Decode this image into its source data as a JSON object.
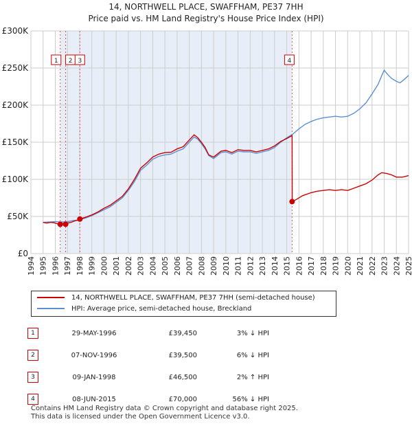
{
  "title": {
    "line1": "14, NORTHWELL PLACE, SWAFFHAM, PE37 7HH",
    "line2": "Price paid vs. HM Land Registry's House Price Index (HPI)"
  },
  "colors": {
    "property": "#cc0000",
    "hpi": "#5b8fd0",
    "shade": "#e8eef8",
    "grid": "#cccccc",
    "marker_line": "#e05050"
  },
  "chart_data": {
    "type": "line",
    "title": "Price paid vs. HM Land Registry's House Price Index (HPI)",
    "xlabel": "",
    "ylabel": "",
    "xlim": [
      1994,
      2025
    ],
    "ylim": [
      0,
      300000
    ],
    "x_ticks": [
      "1994",
      "1995",
      "1996",
      "1997",
      "1998",
      "1999",
      "2000",
      "2001",
      "2002",
      "2003",
      "2004",
      "2005",
      "2006",
      "2007",
      "2008",
      "2009",
      "2010",
      "2011",
      "2012",
      "2013",
      "2014",
      "2015",
      "2016",
      "2017",
      "2018",
      "2019",
      "2020",
      "2021",
      "2022",
      "2023",
      "2024",
      "2025"
    ],
    "y_ticks": [
      {
        "value": 0,
        "label": "£0"
      },
      {
        "value": 50000,
        "label": "£50K"
      },
      {
        "value": 100000,
        "label": "£100K"
      },
      {
        "value": 150000,
        "label": "£150K"
      },
      {
        "value": 200000,
        "label": "£200K"
      },
      {
        "value": 250000,
        "label": "£250K"
      },
      {
        "value": 300000,
        "label": "£300K"
      }
    ],
    "grid": true,
    "series": [
      {
        "name": "14, NORTHWELL PLACE, SWAFFHAM, PE37 7HH (semi-detached house)",
        "color": "#cc0000",
        "x": [
          1995.0,
          1995.3,
          1995.6,
          1995.9,
          1996.2,
          1996.41,
          1996.6,
          1996.85,
          1997.0,
          1997.3,
          1997.6,
          1997.9,
          1998.02,
          1998.5,
          1999.0,
          1999.5,
          2000.0,
          2000.5,
          2001.0,
          2001.5,
          2002.0,
          2002.5,
          2003.0,
          2003.5,
          2004.0,
          2004.5,
          2005.0,
          2005.5,
          2006.0,
          2006.5,
          2007.0,
          2007.4,
          2007.7,
          2008.0,
          2008.3,
          2008.6,
          2009.0,
          2009.3,
          2009.6,
          2010.0,
          2010.5,
          2011.0,
          2011.5,
          2012.0,
          2012.5,
          2013.0,
          2013.5,
          2014.0,
          2014.5,
          2015.0,
          2015.44,
          2015.45,
          2015.8,
          2016.3,
          2017.0,
          2017.5,
          2018.0,
          2018.5,
          2019.0,
          2019.5,
          2020.0,
          2020.5,
          2021.0,
          2021.5,
          2022.0,
          2022.5,
          2022.8,
          2023.2,
          2023.6,
          2024.0,
          2024.5,
          2025.0
        ],
        "values": [
          42000,
          41000,
          42000,
          41500,
          40000,
          39450,
          40000,
          39500,
          41000,
          42000,
          44000,
          45000,
          46500,
          49000,
          52000,
          56000,
          61000,
          65000,
          71000,
          77000,
          87000,
          100000,
          115000,
          122000,
          130000,
          134000,
          136000,
          136500,
          141000,
          144000,
          153000,
          160000,
          156000,
          150000,
          143000,
          133000,
          130000,
          134000,
          138000,
          139000,
          136000,
          140000,
          139000,
          139000,
          137000,
          139000,
          141000,
          145000,
          151000,
          155000,
          159000,
          70000,
          73000,
          78000,
          82000,
          84000,
          85000,
          86000,
          85000,
          86000,
          85000,
          88000,
          91000,
          94000,
          99000,
          106000,
          109000,
          108000,
          106000,
          103000,
          103000,
          105000
        ]
      },
      {
        "name": "HPI: Average price, semi-detached house, Breckland",
        "color": "#5b8fd0",
        "x": [
          1995.0,
          1995.5,
          1996.0,
          1996.5,
          1997.0,
          1997.5,
          1998.0,
          1998.5,
          1999.0,
          1999.5,
          2000.0,
          2000.5,
          2001.0,
          2001.5,
          2002.0,
          2002.5,
          2003.0,
          2003.5,
          2004.0,
          2004.5,
          2005.0,
          2005.5,
          2006.0,
          2006.5,
          2007.0,
          2007.4,
          2007.7,
          2008.0,
          2008.3,
          2008.6,
          2009.0,
          2009.3,
          2009.6,
          2010.0,
          2010.5,
          2011.0,
          2011.5,
          2012.0,
          2012.5,
          2013.0,
          2013.5,
          2014.0,
          2014.5,
          2015.0,
          2015.5,
          2016.0,
          2016.5,
          2017.0,
          2017.5,
          2018.0,
          2018.5,
          2019.0,
          2019.5,
          2020.0,
          2020.5,
          2021.0,
          2021.5,
          2022.0,
          2022.5,
          2022.8,
          2023.0,
          2023.3,
          2023.6,
          2024.0,
          2024.3,
          2024.6,
          2025.0
        ],
        "values": [
          42000,
          42500,
          43000,
          42500,
          43000,
          44500,
          45500,
          48000,
          51000,
          55000,
          59000,
          63000,
          69000,
          75000,
          85000,
          97000,
          112000,
          119000,
          127000,
          131000,
          133000,
          134000,
          138000,
          141000,
          150000,
          157000,
          154000,
          148000,
          141000,
          132000,
          128000,
          132000,
          136000,
          137000,
          134000,
          138000,
          137000,
          137000,
          135000,
          137000,
          139000,
          143000,
          150000,
          156000,
          161000,
          168000,
          174000,
          178000,
          181000,
          183000,
          184000,
          185000,
          184000,
          185000,
          189000,
          195000,
          203000,
          215000,
          228000,
          240000,
          247000,
          241000,
          236000,
          232000,
          230000,
          234000,
          240000
        ]
      }
    ],
    "sales": [
      {
        "num": "1",
        "year": 1996.41,
        "price": 39450
      },
      {
        "num": "2",
        "year": 1996.85,
        "price": 39500
      },
      {
        "num": "3",
        "year": 1998.02,
        "price": 46500
      },
      {
        "num": "4",
        "year": 2015.44,
        "price": 70000
      }
    ]
  },
  "legend": {
    "property_label": "14, NORTHWELL PLACE, SWAFFHAM, PE37 7HH (semi-detached house)",
    "hpi_label": "HPI: Average price, semi-detached house, Breckland"
  },
  "table": [
    {
      "num": "1",
      "date": "29-MAY-1996",
      "price": "£39,450",
      "hpi": "3% ↓ HPI"
    },
    {
      "num": "2",
      "date": "07-NOV-1996",
      "price": "£39,500",
      "hpi": "6% ↓ HPI"
    },
    {
      "num": "3",
      "date": "09-JAN-1998",
      "price": "£46,500",
      "hpi": "2% ↑ HPI"
    },
    {
      "num": "4",
      "date": "08-JUN-2015",
      "price": "£70,000",
      "hpi": "56% ↓ HPI"
    }
  ],
  "footer": {
    "line1": "Contains HM Land Registry data © Crown copyright and database right 2025.",
    "line2": "This data is licensed under the Open Government Licence v3.0."
  }
}
